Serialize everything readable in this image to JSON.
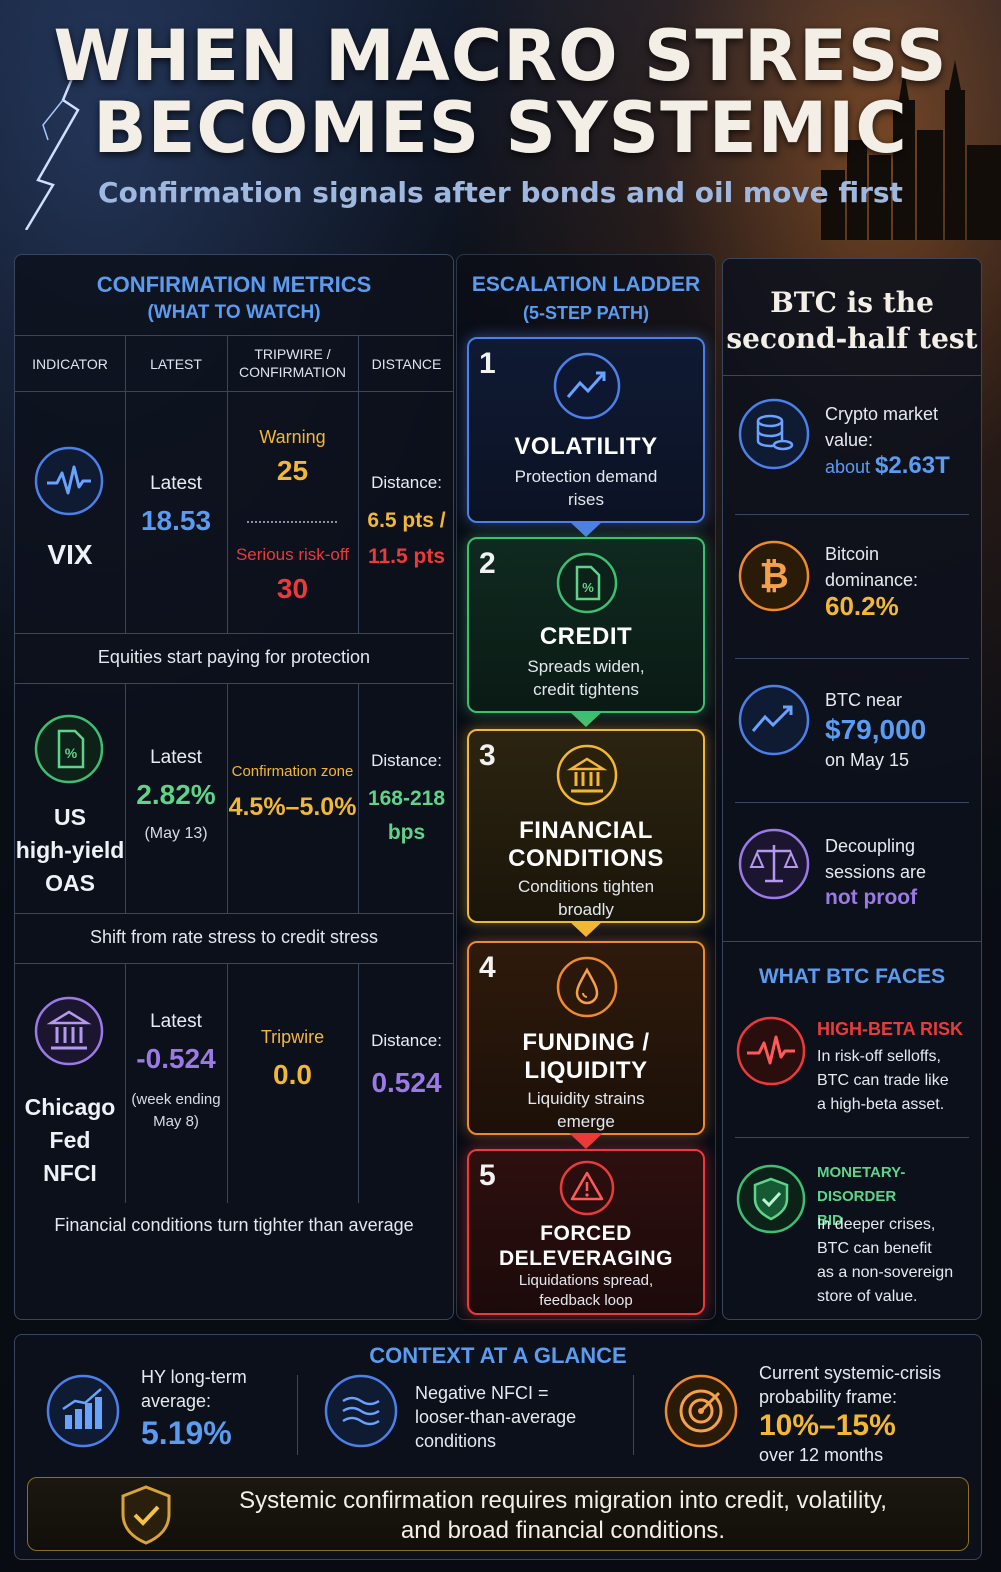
{
  "header": {
    "title_line1": "WHEN MACRO STRESS",
    "title_line2": "BECOMES SYSTEMIC",
    "subtitle": "Confirmation signals after bonds and oil move first"
  },
  "metrics": {
    "heading1": "CONFIRMATION METRICS",
    "heading2": "(WHAT TO WATCH)",
    "columns": [
      "INDICATOR",
      "LATEST",
      "TRIPWIRE /",
      "CONFIRMATION",
      "DISTANCE"
    ],
    "rows": [
      {
        "indicator": "VIX",
        "latest_label": "Latest",
        "latest_value": "18.53",
        "trip_label1": "Warning",
        "trip_value1": "25",
        "trip_label2": "Serious risk-off",
        "trip_value2": "30",
        "distance_label": "Distance:",
        "distance_value1": "6.5 pts /",
        "distance_value2": "11.5 pts",
        "note": "Equities start paying for protection"
      },
      {
        "indicator_line1": "US",
        "indicator_line2": "high-yield",
        "indicator_line3": "OAS",
        "latest_label": "Latest",
        "latest_value": "2.82%",
        "latest_sub": "(May 13)",
        "trip_label1": "Confirmation zone",
        "trip_value1": "4.5%–5.0%",
        "distance_label": "Distance:",
        "distance_value1": "168-218",
        "distance_value2": "bps",
        "note": "Shift from rate stress to credit stress"
      },
      {
        "indicator_line1": "Chicago",
        "indicator_line2": "Fed",
        "indicator_line3": "NFCI",
        "latest_label": "Latest",
        "latest_value": "-0.524",
        "latest_sub1": "(week ending",
        "latest_sub2": "May 8)",
        "trip_label1": "Tripwire",
        "trip_value1": "0.0",
        "distance_label": "Distance:",
        "distance_value1": "0.524",
        "note": "Financial conditions turn tighter than average"
      }
    ]
  },
  "ladder": {
    "heading1": "ESCALATION LADDER",
    "heading2": "(5-STEP PATH)",
    "steps": [
      {
        "num": "1",
        "name1": "VOLATILITY",
        "name2": "",
        "desc1": "Protection demand",
        "desc2": "rises",
        "icon": "trend-up-icon"
      },
      {
        "num": "2",
        "name1": "CREDIT",
        "name2": "",
        "desc1": "Spreads widen,",
        "desc2": "credit tightens",
        "icon": "document-percent-icon"
      },
      {
        "num": "3",
        "name1": "FINANCIAL",
        "name2": "CONDITIONS",
        "desc1": "Conditions tighten",
        "desc2": "broadly",
        "icon": "bank-icon"
      },
      {
        "num": "4",
        "name1": "FUNDING /",
        "name2": "LIQUIDITY",
        "desc1": "Liquidity strains",
        "desc2": "emerge",
        "icon": "droplet-icon"
      },
      {
        "num": "5",
        "name1": "FORCED",
        "name2": "DELEVERAGING",
        "desc1": "Liquidations spread,",
        "desc2": "feedback loop",
        "icon": "warning-icon"
      }
    ]
  },
  "btc": {
    "title1": "BTC is the",
    "title2": "second-half test",
    "items": [
      {
        "line1": "Crypto market",
        "line2": "value:",
        "pre": "about ",
        "value": "$2.63T"
      },
      {
        "line1": "Bitcoin",
        "line2": "dominance:",
        "value": "60.2%"
      },
      {
        "line1": "BTC near",
        "value": "$79,000",
        "line3": "on May 15"
      },
      {
        "line1": "Decoupling",
        "line2": "sessions are",
        "value": "not proof"
      }
    ],
    "faces_heading": "WHAT BTC FACES",
    "faces": [
      {
        "title": "HIGH-BETA RISK",
        "d1": "In risk-off selloffs,",
        "d2": "BTC can trade like",
        "d3": "a high-beta asset."
      },
      {
        "title1": "MONETARY-DISORDER",
        "title2": "BID",
        "d1": "In deeper crises,",
        "d2": "BTC can benefit",
        "d3": "as a non-sovereign",
        "d4": "store of value."
      }
    ]
  },
  "context": {
    "heading": "CONTEXT AT A GLANCE",
    "c1_l1": "HY long-term",
    "c1_l2": "average:",
    "c1_value": "5.19%",
    "c2_l1": "Negative NFCI =",
    "c2_l2": "looser-than-average",
    "c2_l3": "conditions",
    "c3_l1": "Current systemic-crisis",
    "c3_l2": "probability frame:",
    "c3_value": "10%–15%",
    "c3_l3": "over 12 months",
    "footer1": "Systemic confirmation requires migration into credit, volatility,",
    "footer2": "and broad financial conditions."
  },
  "colors": {
    "blue": "#5b9bf0",
    "green": "#5fd38a",
    "yellow": "#f2b733",
    "orange": "#f08a2a",
    "red": "#ec3a3a",
    "purple": "#9b7ae8"
  }
}
